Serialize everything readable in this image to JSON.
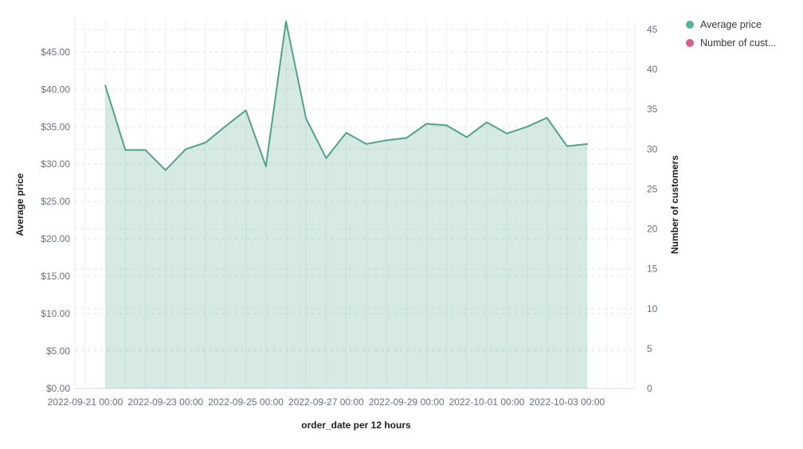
{
  "legend": {
    "items": [
      {
        "label": "Average price",
        "color": "#54b399"
      },
      {
        "label": "Number of cust...",
        "color": "#d36086"
      }
    ]
  },
  "chart_data": {
    "type": "area",
    "title": "",
    "x_axis": {
      "title": "order_date per 12 hours",
      "ticks": [
        "2022-09-21 00:00",
        "2022-09-23 00:00",
        "2022-09-25 00:00",
        "2022-09-27 00:00",
        "2022-09-29 00:00",
        "2022-10-01 00:00",
        "2022-10-03 00:00"
      ]
    },
    "left_axis": {
      "title": "Average price",
      "ticks": [
        "$0.00",
        "$5.00",
        "$10.00",
        "$15.00",
        "$20.00",
        "$25.00",
        "$30.00",
        "$35.00",
        "$40.00",
        "$45.00"
      ],
      "tick_values": [
        0,
        5,
        10,
        15,
        20,
        25,
        30,
        35,
        40,
        45
      ],
      "max": 49.4
    },
    "right_axis": {
      "title": "Number of customers",
      "ticks": [
        "0",
        "5",
        "10",
        "15",
        "20",
        "25",
        "30",
        "35",
        "40",
        "45"
      ],
      "tick_values": [
        0,
        5,
        10,
        15,
        20,
        25,
        30,
        35,
        40,
        45
      ],
      "max": 46.3
    },
    "x": [
      "2022-09-21 12:00",
      "2022-09-22 00:00",
      "2022-09-22 12:00",
      "2022-09-23 00:00",
      "2022-09-23 12:00",
      "2022-09-24 00:00",
      "2022-09-24 12:00",
      "2022-09-25 00:00",
      "2022-09-25 12:00",
      "2022-09-26 00:00",
      "2022-09-26 12:00",
      "2022-09-27 00:00",
      "2022-09-27 12:00",
      "2022-09-28 00:00",
      "2022-09-28 12:00",
      "2022-09-29 00:00",
      "2022-09-29 12:00",
      "2022-09-30 00:00",
      "2022-09-30 12:00",
      "2022-10-01 00:00",
      "2022-10-01 12:00",
      "2022-10-02 00:00",
      "2022-10-02 12:00",
      "2022-10-03 00:00",
      "2022-10-03 12:00"
    ],
    "series": [
      {
        "name": "Average price",
        "axis": "left",
        "color": "#52a385",
        "fill": "rgba(84,167,140,0.24)",
        "values": [
          40.5,
          31.9,
          31.9,
          29.2,
          32.0,
          32.9,
          35.1,
          37.2,
          29.7,
          49.1,
          36.1,
          30.8,
          34.2,
          32.7,
          33.2,
          33.5,
          35.4,
          35.2,
          33.6,
          35.6,
          34.1,
          35.0,
          36.2,
          32.4,
          32.7
        ]
      },
      {
        "name": "Number of customers",
        "axis": "right",
        "color": "#d36086",
        "values": []
      }
    ],
    "grid": {
      "horizontal": "dashed",
      "vertical": "solid"
    },
    "legend_position": "right"
  }
}
